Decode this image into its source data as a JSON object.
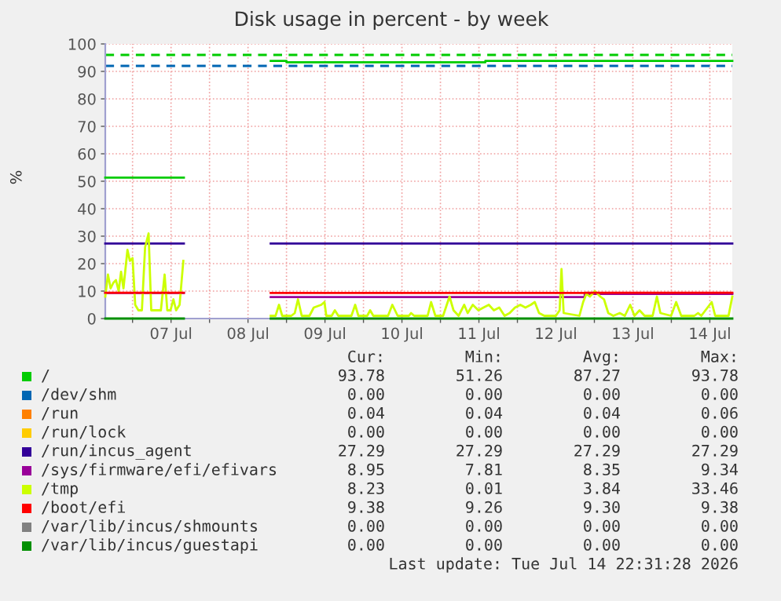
{
  "chart_data": {
    "type": "line",
    "title": "Disk usage in percent - by week",
    "ylabel": "%",
    "x": [
      "2026-07-06T15:30",
      "2026-07-07T16:00",
      "2026-07-08T00:00",
      "2026-07-08T19:05",
      "2026-07-14T19:00"
    ],
    "series": [
      {
        "name": "/",
        "color": "#00cc00",
        "x": [
          "2026-07-06T15:30",
          "2026-07-07T16:00",
          "2026-07-08T00:00",
          "2026-07-08T19:05",
          "2026-07-09T00:00",
          "2026-07-09T00:00",
          "2026-07-11T14:00",
          "2026-07-11T14:00",
          "2026-07-14T19:00"
        ],
        "values": [
          51.3,
          51.3,
          null,
          93.8,
          93.8,
          93.3,
          93.3,
          93.8,
          93.8
        ]
      },
      {
        "name": "/dev/shm",
        "color": "#0066b3",
        "values": [
          null,
          null,
          null,
          null,
          null
        ]
      },
      {
        "name": "/run",
        "color": "#ff8000",
        "values": [
          null,
          null,
          null,
          null,
          null
        ]
      },
      {
        "name": "/run/lock",
        "color": "#ffcc00",
        "values": [
          null,
          null,
          null,
          null,
          null
        ]
      },
      {
        "name": "/run/incus_agent",
        "color": "#330099",
        "values": [
          27.3,
          27.3,
          null,
          27.3,
          27.3
        ]
      },
      {
        "name": "/sys/firmware/efi/efivars",
        "color": "#990099",
        "x": [
          "2026-07-06T15:30",
          "2026-07-07T16:00",
          "2026-07-08T00:00",
          "2026-07-08T19:05",
          "2026-07-12T21:00",
          "2026-07-12T21:00",
          "2026-07-14T19:00"
        ],
        "values": [
          9.3,
          9.3,
          null,
          7.8,
          7.8,
          9.0,
          9.0
        ]
      },
      {
        "name": "/tmp",
        "color": "#ccff00",
        "x": [
          "2026-07-06T15:30",
          "2026-07-06T16:20",
          "2026-07-06T17:10",
          "2026-07-06T18:00",
          "2026-07-06T18:50",
          "2026-07-06T19:40",
          "2026-07-06T20:25",
          "2026-07-06T21:10",
          "2026-07-06T22:25",
          "2026-07-06T23:10",
          "2026-07-07T00:00",
          "2026-07-07T00:50",
          "2026-07-07T01:50",
          "2026-07-07T02:55",
          "2026-07-07T03:55",
          "2026-07-07T05:00",
          "2026-07-07T05:50",
          "2026-07-07T07:10",
          "2026-07-07T08:50",
          "2026-07-07T10:00",
          "2026-07-07T10:50",
          "2026-07-07T11:50",
          "2026-07-07T12:45",
          "2026-07-07T13:35",
          "2026-07-07T14:40",
          "2026-07-07T15:50",
          "2026-07-08T00:00",
          "2026-07-08T19:05",
          "2026-07-08T20:35",
          "2026-07-08T21:40",
          "2026-07-08T22:40",
          "2026-07-09T01:30",
          "2026-07-09T02:35",
          "2026-07-09T03:35",
          "2026-07-09T04:45",
          "2026-07-09T07:10",
          "2026-07-09T08:30",
          "2026-07-09T10:50",
          "2026-07-09T11:50",
          "2026-07-09T12:25",
          "2026-07-09T14:05",
          "2026-07-09T15:05",
          "2026-07-09T16:10",
          "2026-07-09T20:15",
          "2026-07-09T21:25",
          "2026-07-09T22:25",
          "2026-07-10T01:10",
          "2026-07-10T02:05",
          "2026-07-10T03:05",
          "2026-07-10T07:40",
          "2026-07-10T09:00",
          "2026-07-10T10:40",
          "2026-07-10T14:10",
          "2026-07-10T14:50",
          "2026-07-10T15:50",
          "2026-07-10T20:00",
          "2026-07-10T21:05",
          "2026-07-10T22:25",
          "2026-07-11T00:50",
          "2026-07-11T02:50",
          "2026-07-11T04:05",
          "2026-07-11T05:40",
          "2026-07-11T07:25",
          "2026-07-11T08:30",
          "2026-07-11T10:05",
          "2026-07-11T11:50",
          "2026-07-11T13:25",
          "2026-07-11T15:05",
          "2026-07-11T16:40",
          "2026-07-11T18:20",
          "2026-07-11T20:00",
          "2026-07-11T21:35",
          "2026-07-11T23:15",
          "2026-07-12T00:55",
          "2026-07-12T02:30",
          "2026-07-12T04:10",
          "2026-07-12T05:25",
          "2026-07-12T06:45",
          "2026-07-12T08:25",
          "2026-07-12T12:00",
          "2026-07-12T13:10",
          "2026-07-12T13:45",
          "2026-07-12T14:25",
          "2026-07-12T19:20",
          "2026-07-12T20:30",
          "2026-07-12T21:30",
          "2026-07-12T22:35",
          "2026-07-13T00:10",
          "2026-07-13T01:50",
          "2026-07-13T03:00",
          "2026-07-13T04:20",
          "2026-07-13T05:55",
          "2026-07-13T07:55",
          "2026-07-13T09:30",
          "2026-07-13T11:10",
          "2026-07-13T12:30",
          "2026-07-13T14:05",
          "2026-07-13T15:40",
          "2026-07-13T18:10",
          "2026-07-13T19:30",
          "2026-07-13T20:35",
          "2026-07-13T23:55",
          "2026-07-14T01:30",
          "2026-07-14T03:05",
          "2026-07-14T07:10",
          "2026-07-14T08:20",
          "2026-07-14T09:20",
          "2026-07-14T12:35",
          "2026-07-14T13:40",
          "2026-07-14T16:10",
          "2026-07-14T17:50",
          "2026-07-14T19:00"
        ],
        "values": [
          8,
          16,
          11,
          13,
          14,
          10,
          17,
          11,
          25,
          21,
          22,
          5,
          3,
          3,
          26,
          31,
          3,
          3,
          3,
          16,
          3,
          3,
          7,
          3,
          5,
          21,
          null,
          1,
          1,
          5,
          1,
          1,
          2,
          7,
          1,
          1,
          4,
          5,
          6,
          1,
          1,
          3,
          1,
          1,
          5,
          1,
          1,
          3,
          1,
          1,
          5,
          1,
          1,
          2,
          1,
          1,
          6,
          1,
          1,
          8,
          3,
          1,
          5,
          2,
          5,
          3,
          4,
          5,
          3,
          4,
          1,
          2,
          4,
          5,
          4,
          5,
          6,
          2,
          1,
          1,
          3,
          18,
          2,
          1,
          6,
          9,
          8,
          10,
          8,
          7,
          2,
          1,
          2,
          1,
          5,
          1,
          3,
          1,
          1,
          8,
          2,
          1,
          6,
          1,
          1,
          2,
          1,
          6,
          1,
          1,
          1,
          8
        ]
      },
      {
        "name": "/boot/efi",
        "color": "#ff0000",
        "x": [
          "2026-07-06T15:30",
          "2026-07-07T16:00",
          "2026-07-08T00:00",
          "2026-07-08T19:05",
          "2026-07-12T21:00",
          "2026-07-12T21:00",
          "2026-07-14T19:00"
        ],
        "values": [
          9.4,
          9.4,
          null,
          9.3,
          9.3,
          9.4,
          9.4
        ]
      },
      {
        "name": "/var/lib/incus/shmounts",
        "color": "#808080",
        "values": [
          null,
          null,
          null,
          null,
          null
        ]
      },
      {
        "name": "/var/lib/incus/guestapi",
        "color": "#008f00",
        "values": [
          0,
          0,
          null,
          0,
          0
        ]
      }
    ],
    "xlim": [
      "2026-07-06T15:30",
      "2026-07-14T19:00"
    ],
    "xticks": [
      {
        "value": "2026-07-07T00:00",
        "label": null
      },
      {
        "value": "2026-07-07T12:00",
        "label": "07 Jul"
      },
      {
        "value": "2026-07-08T00:00",
        "label": null
      },
      {
        "value": "2026-07-08T12:00",
        "label": "08 Jul"
      },
      {
        "value": "2026-07-09T00:00",
        "label": null
      },
      {
        "value": "2026-07-09T12:00",
        "label": "09 Jul"
      },
      {
        "value": "2026-07-10T00:00",
        "label": null
      },
      {
        "value": "2026-07-10T12:00",
        "label": "10 Jul"
      },
      {
        "value": "2026-07-11T00:00",
        "label": null
      },
      {
        "value": "2026-07-11T12:00",
        "label": "11 Jul"
      },
      {
        "value": "2026-07-12T00:00",
        "label": null
      },
      {
        "value": "2026-07-12T12:00",
        "label": "12 Jul"
      },
      {
        "value": "2026-07-13T00:00",
        "label": null
      },
      {
        "value": "2026-07-13T12:00",
        "label": "13 Jul"
      },
      {
        "value": "2026-07-14T00:00",
        "label": null
      },
      {
        "value": "2026-07-14T12:00",
        "label": "14 Jul"
      }
    ],
    "ylim": [
      0,
      100
    ],
    "yticks": [
      0,
      10,
      20,
      30,
      40,
      50,
      60,
      70,
      80,
      90,
      100
    ],
    "ref_lines": [
      {
        "axis": "y",
        "value": 96,
        "color": "#00cc00",
        "line_style": "dashed"
      },
      {
        "axis": "y",
        "value": 92,
        "color": "#0066b3",
        "line_style": "dashed"
      }
    ],
    "grid": true,
    "legend": "bottom",
    "marker": "none",
    "line_style": "solid",
    "annotations": [
      "Cur:",
      "Min:",
      "Avg:",
      "Max:",
      "93.78",
      "51.26",
      "87.27",
      "93.78",
      "0.00",
      "0.00",
      "0.00",
      "0.00",
      "0.04",
      "0.04",
      "0.04",
      "0.06",
      "0.00",
      "0.00",
      "0.00",
      "0.00",
      "27.29",
      "27.29",
      "27.29",
      "27.29",
      "8.95",
      "7.81",
      "8.35",
      "9.34",
      "8.23",
      "0.01",
      "3.84",
      "33.46",
      "9.38",
      "9.26",
      "9.30",
      "9.38",
      "0.00",
      "0.00",
      "0.00",
      "0.00",
      "0.00",
      "0.00",
      "0.00",
      "0.00",
      "Last update: Tue Jul 14 22:31:28 2026"
    ]
  }
}
